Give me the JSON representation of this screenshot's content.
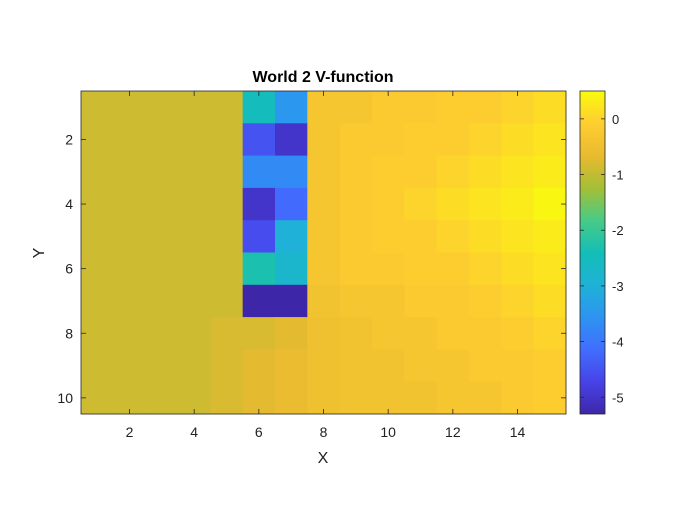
{
  "chart_data": {
    "type": "heatmap",
    "title": "World 2 V-function",
    "xlabel": "X",
    "ylabel": "Y",
    "x_ticks": [
      2,
      4,
      6,
      8,
      10,
      12,
      14
    ],
    "y_ticks": [
      2,
      4,
      6,
      8,
      10
    ],
    "x_range": [
      0.5,
      15.5
    ],
    "y_range": [
      0.5,
      10.5
    ],
    "y_reversed": true,
    "colorbar": {
      "ticks": [
        0,
        -1,
        -2,
        -3,
        -4,
        -5
      ],
      "range": [
        -5.3,
        0.5
      ],
      "colormap": "parula"
    },
    "z": [
      [
        -0.9,
        -0.9,
        -0.9,
        -0.9,
        -0.9,
        -2.5,
        -3.5,
        -0.3,
        -0.3,
        -0.2,
        -0.2,
        -0.1,
        -0.1,
        0.0,
        0.1
      ],
      [
        -0.9,
        -0.9,
        -0.9,
        -0.9,
        -0.9,
        -4.5,
        -5.0,
        -0.3,
        -0.2,
        -0.2,
        -0.1,
        -0.1,
        0.0,
        0.1,
        0.2
      ],
      [
        -0.9,
        -0.9,
        -0.9,
        -0.9,
        -0.9,
        -3.7,
        -3.7,
        -0.3,
        -0.2,
        -0.1,
        -0.1,
        0.0,
        0.1,
        0.2,
        0.3
      ],
      [
        -0.9,
        -0.9,
        -0.9,
        -0.9,
        -0.9,
        -5.0,
        -4.2,
        -0.3,
        -0.2,
        -0.1,
        0.0,
        0.1,
        0.2,
        0.3,
        0.45
      ],
      [
        -0.9,
        -0.9,
        -0.9,
        -0.9,
        -0.9,
        -4.6,
        -3.0,
        -0.3,
        -0.2,
        -0.1,
        -0.1,
        0.0,
        0.1,
        0.2,
        0.3
      ],
      [
        -0.9,
        -0.9,
        -0.9,
        -0.9,
        -0.9,
        -2.3,
        -2.8,
        -0.3,
        -0.2,
        -0.2,
        -0.1,
        -0.1,
        0.0,
        0.1,
        0.2
      ],
      [
        -0.9,
        -0.9,
        -0.9,
        -0.9,
        -0.9,
        -5.3,
        -5.3,
        -0.4,
        -0.3,
        -0.3,
        -0.2,
        -0.2,
        -0.1,
        0.0,
        0.1
      ],
      [
        -0.9,
        -0.9,
        -0.9,
        -0.9,
        -0.8,
        -0.8,
        -0.7,
        -0.5,
        -0.4,
        -0.3,
        -0.3,
        -0.2,
        -0.2,
        -0.1,
        0.0
      ],
      [
        -0.9,
        -0.9,
        -0.9,
        -0.9,
        -0.8,
        -0.7,
        -0.6,
        -0.5,
        -0.4,
        -0.4,
        -0.3,
        -0.3,
        -0.2,
        -0.2,
        -0.1
      ],
      [
        -0.9,
        -0.9,
        -0.9,
        -0.9,
        -0.8,
        -0.7,
        -0.6,
        -0.5,
        -0.4,
        -0.4,
        -0.4,
        -0.3,
        -0.3,
        -0.2,
        -0.1
      ]
    ]
  }
}
